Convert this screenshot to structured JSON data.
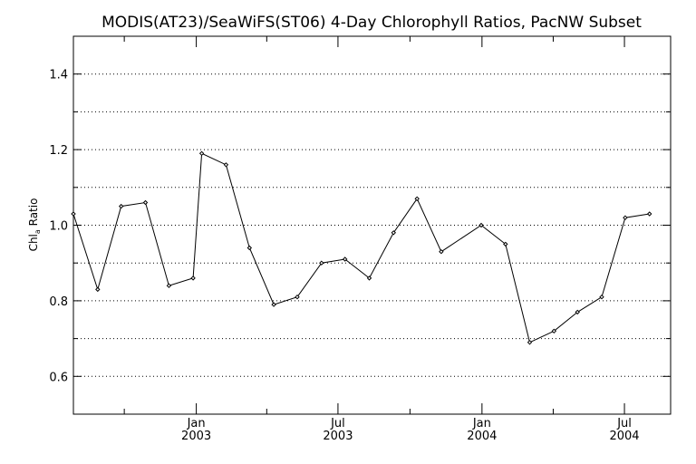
{
  "chart_data": {
    "type": "line",
    "title": "MODIS(AT23)/SeaWiFS(ST06) 4-Day Chlorophyll Ratios, PacNW Subset",
    "ylabel": "Chl",
    "ylabel_sub": "a",
    "ylabel_tail": " Ratio",
    "xlabel": "",
    "ylim": [
      0.5,
      1.5
    ],
    "yticks": [
      0.6,
      0.8,
      1.0,
      1.2,
      1.4
    ],
    "ytick_labels": [
      "0.6",
      "0.8",
      "1.0",
      "1.2",
      "1.4"
    ],
    "grid_y": [
      0.6,
      0.7,
      0.8,
      0.9,
      1.0,
      1.1,
      1.2,
      1.3,
      1.4
    ],
    "grid": true,
    "xlim": [
      "2002-07-28",
      "2004-08-29"
    ],
    "xticks_major": [
      {
        "date": "2003-01-01",
        "month": "Jan",
        "year": "2003"
      },
      {
        "date": "2003-07-01",
        "month": "Jul",
        "year": "2003"
      },
      {
        "date": "2004-01-01",
        "month": "Jan",
        "year": "2004"
      },
      {
        "date": "2004-07-01",
        "month": "Jul",
        "year": "2004"
      }
    ],
    "xticks_minor": [
      "2002-10-01",
      "2003-04-01",
      "2003-10-01",
      "2004-04-01"
    ],
    "series": [
      {
        "points": [
          {
            "x": "2002-07-28",
            "y": 1.03
          },
          {
            "x": "2002-08-28",
            "y": 0.83
          },
          {
            "x": "2002-09-27",
            "y": 1.05
          },
          {
            "x": "2002-10-28",
            "y": 1.06
          },
          {
            "x": "2002-11-27",
            "y": 0.84
          },
          {
            "x": "2002-12-28",
            "y": 0.86
          },
          {
            "x": "2003-01-08",
            "y": 1.19
          },
          {
            "x": "2003-02-08",
            "y": 1.16
          },
          {
            "x": "2003-03-10",
            "y": 0.94
          },
          {
            "x": "2003-04-10",
            "y": 0.79
          },
          {
            "x": "2003-05-10",
            "y": 0.81
          },
          {
            "x": "2003-06-10",
            "y": 0.9
          },
          {
            "x": "2003-07-10",
            "y": 0.91
          },
          {
            "x": "2003-08-10",
            "y": 0.86
          },
          {
            "x": "2003-09-10",
            "y": 0.98
          },
          {
            "x": "2003-10-10",
            "y": 1.07
          },
          {
            "x": "2003-11-10",
            "y": 0.93
          },
          {
            "x": "2003-12-31",
            "y": 1.0
          },
          {
            "x": "2004-01-31",
            "y": 0.95
          },
          {
            "x": "2004-03-02",
            "y": 0.69
          },
          {
            "x": "2004-04-02",
            "y": 0.72
          },
          {
            "x": "2004-05-02",
            "y": 0.77
          },
          {
            "x": "2004-06-02",
            "y": 0.81
          },
          {
            "x": "2004-07-02",
            "y": 1.02
          },
          {
            "x": "2004-08-02",
            "y": 1.03
          }
        ]
      }
    ]
  }
}
